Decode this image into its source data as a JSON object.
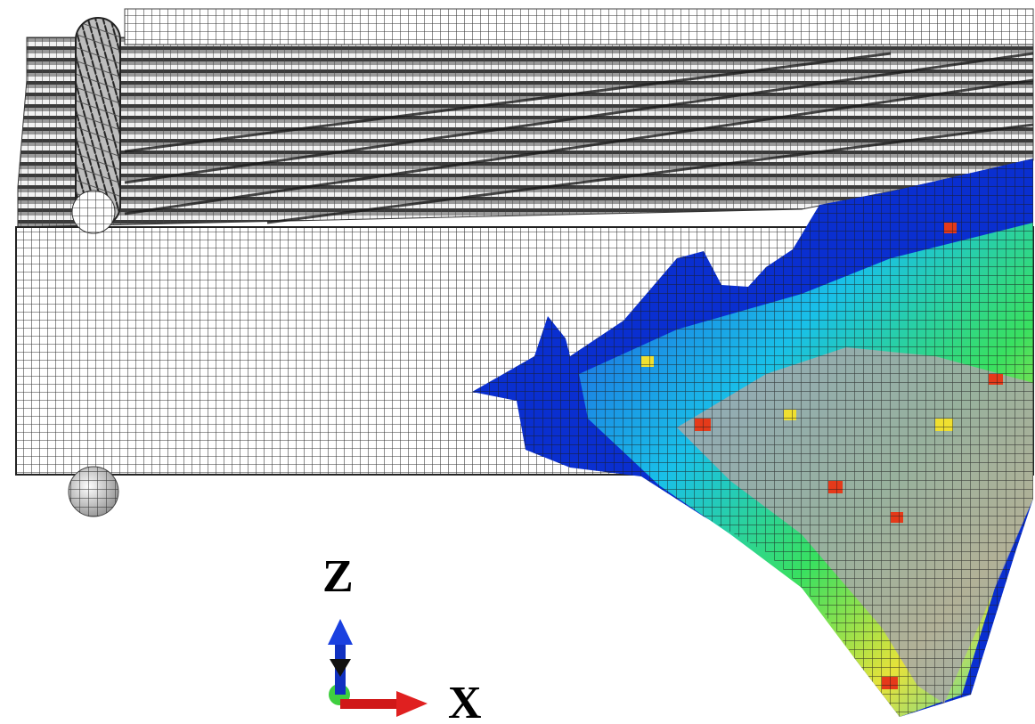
{
  "axes": {
    "z_label": "Z",
    "x_label": "X"
  }
}
